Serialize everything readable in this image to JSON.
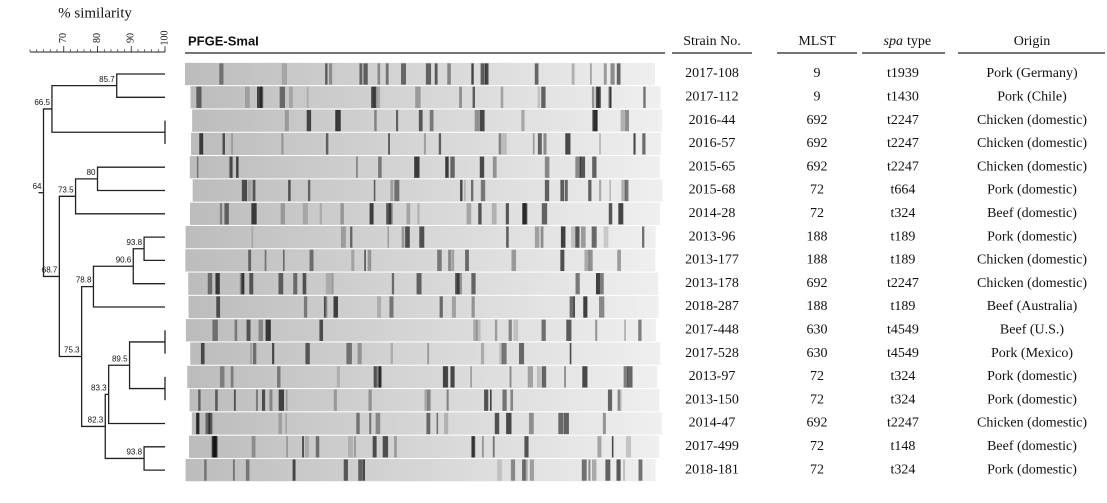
{
  "similarity_axis": {
    "title": "% similarity",
    "range": [
      60,
      100
    ],
    "ticks": [
      70,
      80,
      90,
      100
    ]
  },
  "dendrogram_nodes": [
    85.7,
    66.5,
    80.0,
    64.0,
    73.5,
    93.8,
    90.6,
    68.7,
    78.8,
    75.3,
    89.5,
    83.3,
    82.3,
    93.8
  ],
  "gel_title": "PFGE-SmaI",
  "table": {
    "headers": {
      "strain": "Strain No.",
      "mlst": "MLST",
      "spa": "spa",
      "spa_suffix": "type",
      "origin": "Origin"
    },
    "rows": [
      [
        "2017-108",
        9,
        "t1939",
        "Pork (Germany)"
      ],
      [
        "2017-112",
        9,
        "t1430",
        "Pork (Chile)"
      ],
      [
        "2016-44",
        692,
        "t2247",
        "Chicken (domestic)"
      ],
      [
        "2016-57",
        692,
        "t2247",
        "Chicken (domestic)"
      ],
      [
        "2015-65",
        692,
        "t2247",
        "Chicken (domestic)"
      ],
      [
        "2015-68",
        72,
        "t664",
        "Pork (domestic)"
      ],
      [
        "2014-28",
        72,
        "t324",
        "Beef (domestic)"
      ],
      [
        "2013-96",
        188,
        "t189",
        "Pork (domestic)"
      ],
      [
        "2013-177",
        188,
        "t189",
        "Chicken (domestic)"
      ],
      [
        "2013-178",
        692,
        "t2247",
        "Chicken (domestic)"
      ],
      [
        "2018-287",
        188,
        "t189",
        "Beef (Australia)"
      ],
      [
        "2017-448",
        630,
        "t4549",
        "Beef (U.S.)"
      ],
      [
        "2017-528",
        630,
        "t4549",
        "Pork (Mexico)"
      ],
      [
        "2013-97",
        72,
        "t324",
        "Pork (domestic)"
      ],
      [
        "2013-150",
        72,
        "t324",
        "Pork (domestic)"
      ],
      [
        "2014-47",
        692,
        "t2247",
        "Chicken (domestic)"
      ],
      [
        "2017-499",
        72,
        "t148",
        "Beef (domestic)"
      ],
      [
        "2018-181",
        72,
        "t324",
        "Pork (domestic)"
      ]
    ]
  }
}
